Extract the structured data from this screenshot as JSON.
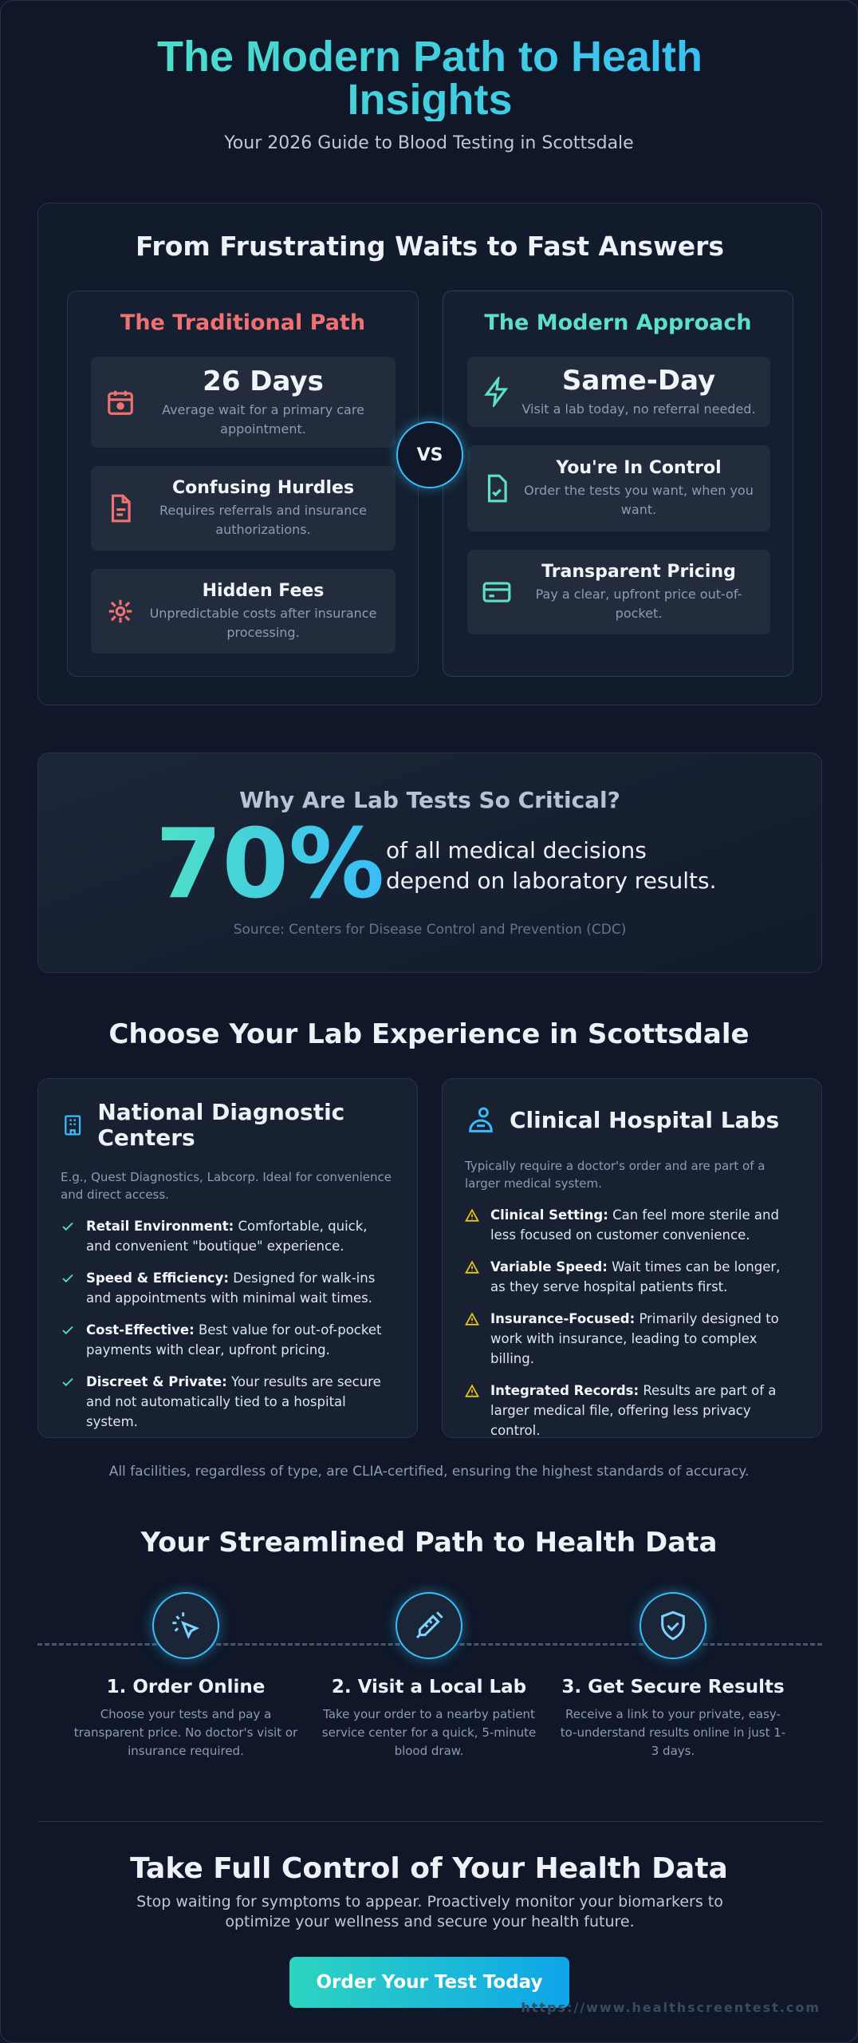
{
  "header": {
    "title": "The Modern Path to Health Insights",
    "subtitle": "Your 2026 Guide to Blood Testing in Scottsdale"
  },
  "comparison": {
    "title": "From Frustrating Waits to Fast Answers",
    "vs": "VS",
    "traditional": {
      "title": "The Traditional Path",
      "items": [
        {
          "title": "26 Days",
          "desc": "Average wait for a primary care appointment."
        },
        {
          "title": "Confusing Hurdles",
          "desc": "Requires referrals and insurance authorizations."
        },
        {
          "title": "Hidden Fees",
          "desc": "Unpredictable costs after insurance processing."
        }
      ]
    },
    "modern": {
      "title": "The Modern Approach",
      "items": [
        {
          "title": "Same-Day",
          "desc": "Visit a lab today, no referral needed."
        },
        {
          "title": "You're In Control",
          "desc": "Order the tests you want, when you want."
        },
        {
          "title": "Transparent Pricing",
          "desc": "Pay a clear, upfront price out-of-pocket."
        }
      ]
    }
  },
  "stat": {
    "heading": "Why Are Lab Tests So Critical?",
    "figure": "70%",
    "text": "of all medical decisions depend on laboratory results.",
    "source": "Source: Centers for Disease Control and Prevention (CDC)"
  },
  "labs": {
    "title": "Choose Your Lab Experience in Scottsdale",
    "cards": [
      {
        "name": "National Diagnostic Centers",
        "intro": "E.g., Quest Diagnostics, Labcorp. Ideal for convenience and direct access.",
        "points": [
          {
            "label": "Retail Environment:",
            "text": "Comfortable, quick, and convenient \"boutique\" experience."
          },
          {
            "label": "Speed & Efficiency:",
            "text": "Designed for walk-ins and appointments with minimal wait times."
          },
          {
            "label": "Cost-Effective:",
            "text": "Best value for out-of-pocket payments with clear, upfront pricing."
          },
          {
            "label": "Discreet & Private:",
            "text": "Your results are secure and not automatically tied to a hospital system."
          }
        ]
      },
      {
        "name": "Clinical Hospital Labs",
        "intro": "Typically require a doctor's order and are part of a larger medical system.",
        "points": [
          {
            "label": "Clinical Setting:",
            "text": "Can feel more sterile and less focused on customer convenience."
          },
          {
            "label": "Variable Speed:",
            "text": "Wait times can be longer, as they serve hospital patients first."
          },
          {
            "label": "Insurance-Focused:",
            "text": "Primarily designed to work with insurance, leading to complex billing."
          },
          {
            "label": "Integrated Records:",
            "text": "Results are part of a larger medical file, offering less privacy control."
          }
        ]
      }
    ],
    "footnote": "All facilities, regardless of type, are CLIA-certified, ensuring the highest standards of accuracy."
  },
  "steps": {
    "title": "Your Streamlined Path to Health Data",
    "items": [
      {
        "title": "1. Order Online",
        "desc": "Choose your tests and pay a transparent price. No doctor's visit or insurance required."
      },
      {
        "title": "2. Visit a Local Lab",
        "desc": "Take your order to a nearby patient service center for a quick, 5-minute blood draw."
      },
      {
        "title": "3. Get Secure Results",
        "desc": "Receive a link to your private, easy-to-understand results online in just 1-3 days."
      }
    ]
  },
  "cta": {
    "title": "Take Full Control of Your Health Data",
    "text": "Stop waiting for symptoms to appear. Proactively monitor your biomarkers to optimize your wellness and secure your health future.",
    "button": "Order Your Test Today",
    "url": "https://www.healthscreentest.com"
  }
}
